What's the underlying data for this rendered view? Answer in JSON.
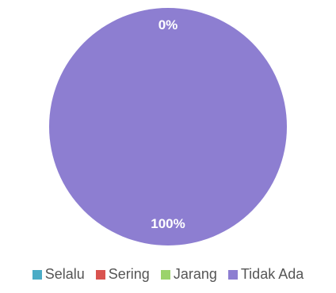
{
  "chart_data": {
    "type": "pie",
    "categories": [
      "Selalu",
      "Sering",
      "Jarang",
      "Tidak Ada"
    ],
    "values": [
      0,
      0,
      0,
      100
    ],
    "colors": [
      "#4bacc6",
      "#d9534f",
      "#9bd36b",
      "#8d7ed1"
    ],
    "data_labels": [
      "0%",
      "",
      "",
      "100%"
    ],
    "legend_position": "bottom"
  }
}
